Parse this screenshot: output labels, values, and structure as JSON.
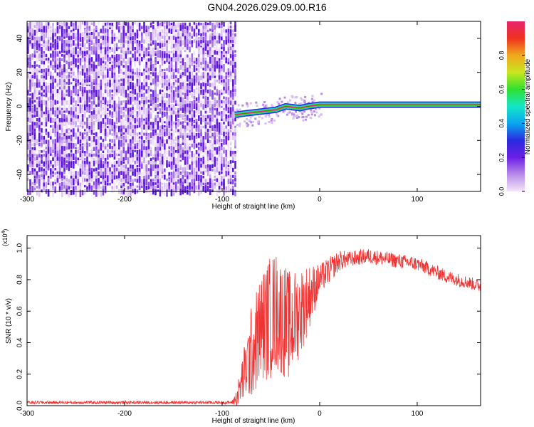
{
  "title": "GN04.2026.029.09.00.R16",
  "colorbar": {
    "label": "Normalized spectral amplitude",
    "ticks": [
      "0.0",
      "0.2",
      "0.4",
      "0.6",
      "0.8"
    ],
    "colors": [
      "#f4e6f9",
      "#b88ce8",
      "#6b1fe6",
      "#2a2ae0",
      "#0aa6f0",
      "#15e6c8",
      "#2fe02f",
      "#c8e61e",
      "#f0a81e",
      "#f0321e",
      "#e6246e"
    ]
  },
  "chart_data": [
    {
      "type": "heatmap",
      "xlabel": "Height of straight line (km)",
      "ylabel": "Frequency (Hz)",
      "xlim": [
        -300,
        165
      ],
      "ylim": [
        -50,
        50
      ],
      "xticks": [
        "-300",
        "-200",
        "-100",
        "0",
        "100"
      ],
      "yticks": [
        "-40",
        "-20",
        "0",
        "20",
        "40"
      ],
      "noise_region": [
        -300,
        -87
      ],
      "ridge": [
        [
          -87,
          -5
        ],
        [
          -75,
          -4
        ],
        [
          -60,
          -3
        ],
        [
          -45,
          -2
        ],
        [
          -35,
          0
        ],
        [
          -20,
          -1
        ],
        [
          -12,
          0
        ],
        [
          0,
          1
        ],
        [
          165,
          1
        ]
      ],
      "colors": {
        "noise": "#6b1fe6",
        "ridge_core": "#e6246e",
        "ridge_mid": "#2fe02f",
        "ridge_edge": "#2a2ae0"
      }
    },
    {
      "type": "line",
      "xlabel": "Height of straight line (km)",
      "ylabel": "SNR (10 * v/v)",
      "scale_label": "(x10",
      "scale_exp": "4",
      "scale_close": ")",
      "xlim": [
        -300,
        165
      ],
      "ylim": [
        0,
        1.08
      ],
      "xticks": [
        "-300",
        "-200",
        "-100",
        "0",
        "100"
      ],
      "yticks": [
        "0.0",
        "0.2",
        "0.4",
        "0.6",
        "0.8",
        "1.0"
      ],
      "series": [
        {
          "color": "#f03232",
          "envelope": [
            [
              -300,
              0.02
            ],
            [
              -90,
              0.02
            ],
            [
              -85,
              0.05
            ],
            [
              -75,
              0.25
            ],
            [
              -60,
              0.5
            ],
            [
              -45,
              0.6
            ],
            [
              -30,
              0.5
            ],
            [
              -20,
              0.6
            ],
            [
              -10,
              0.7
            ],
            [
              0,
              0.8
            ],
            [
              20,
              0.92
            ],
            [
              50,
              0.95
            ],
            [
              100,
              0.9
            ],
            [
              130,
              0.82
            ],
            [
              165,
              0.76
            ]
          ],
          "noise_amplitude": [
            [
              -300,
              0.01
            ],
            [
              -90,
              0.01
            ],
            [
              -85,
              0.06
            ],
            [
              -70,
              0.3
            ],
            [
              -50,
              0.4
            ],
            [
              -30,
              0.35
            ],
            [
              -15,
              0.25
            ],
            [
              0,
              0.1
            ],
            [
              30,
              0.05
            ],
            [
              165,
              0.04
            ]
          ]
        }
      ]
    }
  ]
}
